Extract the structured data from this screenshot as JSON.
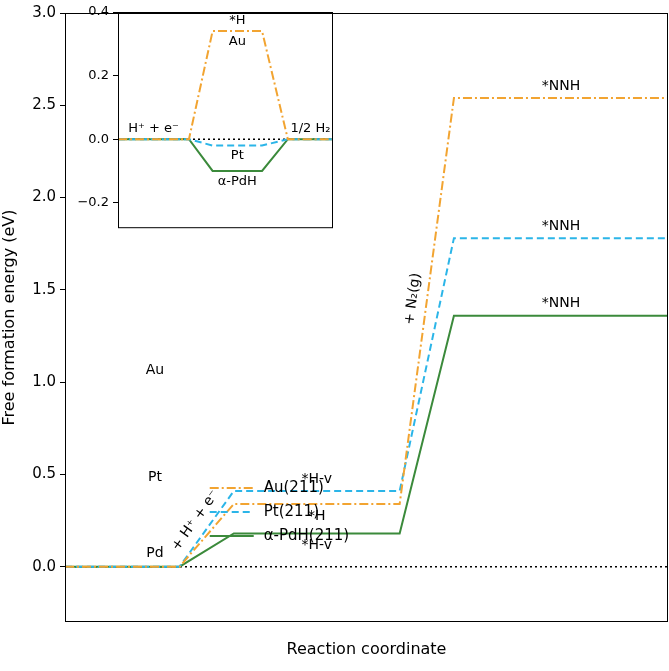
{
  "chart_data": [
    {
      "type": "line",
      "x_label": "Reaction coordinate",
      "y_label": "Free formation energy (eV)",
      "x": [
        0,
        1.9,
        2.8,
        5.55,
        6.45,
        10
      ],
      "xlim": [
        0,
        10
      ],
      "ylim": [
        -0.3,
        3.0
      ],
      "yticks": [
        {
          "value": 0,
          "label": "0.0"
        },
        0.5,
        {
          "value": 1,
          "label": "1.0"
        },
        1.5,
        {
          "value": 2,
          "label": "2.0"
        },
        2.5,
        {
          "value": 3,
          "label": "3.0"
        }
      ],
      "tick_labels": "y",
      "grid": false,
      "legend": "left",
      "baseline": 0,
      "step_labels": [
        "+ H⁺ + e⁻",
        "+ N₂(g)"
      ],
      "structure_labels": [
        "Au",
        "Pt",
        "Pd"
      ],
      "series": [
        {
          "name": "Au(211)",
          "color": "#f2a431",
          "line_style": "dashdot",
          "values": [
            0,
            0,
            0.34,
            0.34,
            2.54,
            2.54
          ],
          "state_labels": [
            null,
            "*H",
            "*NNH"
          ]
        },
        {
          "name": "Pt(211)",
          "color": "#2bb5e8",
          "line_style": "dashed",
          "values": [
            0,
            0,
            0.41,
            0.41,
            1.78,
            1.78
          ],
          "state_labels": [
            null,
            "*H-v",
            "*NNH"
          ]
        },
        {
          "name": "α-PdH(211)",
          "color": "#3b8a3b",
          "line_style": "solid",
          "values": [
            0,
            0,
            0.18,
            0.18,
            1.36,
            1.36
          ],
          "state_labels": [
            null,
            "*H-v",
            "*NNH"
          ]
        }
      ]
    },
    {
      "type": "line",
      "x": [
        0,
        3.3,
        4.4,
        6.7,
        7.9,
        10
      ],
      "xlim": [
        0,
        10
      ],
      "ylim": [
        -0.28,
        0.4
      ],
      "yticks": [
        {
          "value": -0.2,
          "label": "−0.2"
        },
        {
          "value": 0,
          "label": "0.0"
        },
        0.2,
        0.4
      ],
      "tick_labels": "y",
      "grid": false,
      "baseline": 0,
      "state_labels": [
        "H⁺ + e⁻",
        "*H",
        "1/2 H₂"
      ],
      "series": [
        {
          "name": "Au",
          "color": "#f2a431",
          "line_style": "dashdot",
          "values": [
            0,
            0,
            0.34,
            0.34,
            0,
            0
          ]
        },
        {
          "name": "Pt",
          "color": "#2bb5e8",
          "line_style": "dashed",
          "values": [
            0,
            0,
            -0.02,
            -0.02,
            0,
            0
          ]
        },
        {
          "name": "α-PdH",
          "color": "#3b8a3b",
          "line_style": "solid",
          "values": [
            0,
            0,
            -0.1,
            -0.1,
            0,
            0
          ]
        }
      ]
    }
  ]
}
